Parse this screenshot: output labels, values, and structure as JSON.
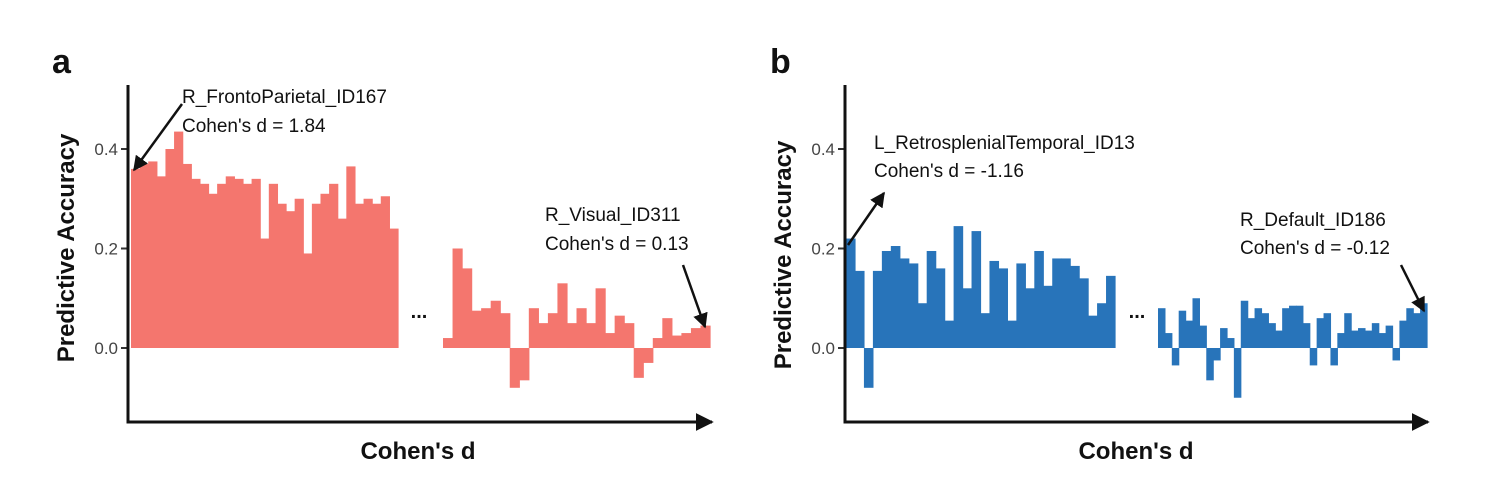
{
  "chart_data": [
    {
      "type": "bar",
      "panel_label": "a",
      "ylabel": "Predictive Accuracy",
      "xlabel": "Cohen's d",
      "ylim": [
        -0.15,
        0.53
      ],
      "yticks": [
        "0.0",
        "0.2",
        "0.4"
      ],
      "ytick_values": [
        0.0,
        0.2,
        0.4
      ],
      "grid": false,
      "bar_color": "#F4766E",
      "gap_marker": "...",
      "series": [
        {
          "group": "top",
          "values": [
            0.36,
            0.37,
            0.375,
            0.345,
            0.4,
            0.435,
            0.37,
            0.34,
            0.33,
            0.31,
            0.33,
            0.345,
            0.34,
            0.33,
            0.34,
            0.22,
            0.33,
            0.29,
            0.275,
            0.3,
            0.19,
            0.29,
            0.31,
            0.33,
            0.26,
            0.365,
            0.29,
            0.3,
            0.29,
            0.305,
            0.24
          ]
        },
        {
          "group": "bottom",
          "values": [
            0.02,
            0.2,
            0.16,
            0.075,
            0.08,
            0.095,
            0.07,
            -0.08,
            -0.065,
            0.08,
            0.05,
            0.07,
            0.13,
            0.05,
            0.08,
            0.05,
            0.12,
            0.03,
            0.065,
            0.05,
            -0.06,
            -0.03,
            0.02,
            0.06,
            0.025,
            0.03,
            0.04,
            0.045
          ]
        }
      ],
      "annotations": [
        {
          "text": [
            "R_FrontoParietal_ID167",
            "Cohen's d = 1.84"
          ],
          "target": {
            "group": "top",
            "index": 0
          }
        },
        {
          "text": [
            "R_Visual_ID311",
            "Cohen's d = 0.13"
          ],
          "target": {
            "group": "bottom",
            "index": 27
          }
        }
      ]
    },
    {
      "type": "bar",
      "panel_label": "b",
      "ylabel": "Predictive Accuracy",
      "xlabel": "Cohen's d",
      "ylim": [
        -0.15,
        0.53
      ],
      "yticks": [
        "0.0",
        "0.2",
        "0.4"
      ],
      "ytick_values": [
        0.0,
        0.2,
        0.4
      ],
      "grid": false,
      "bar_color": "#2874BA",
      "gap_marker": "...",
      "series": [
        {
          "group": "top",
          "values": [
            0.22,
            0.155,
            -0.08,
            0.155,
            0.195,
            0.205,
            0.18,
            0.17,
            0.09,
            0.195,
            0.16,
            0.055,
            0.245,
            0.12,
            0.235,
            0.07,
            0.175,
            0.16,
            0.055,
            0.17,
            0.12,
            0.195,
            0.125,
            0.18,
            0.18,
            0.165,
            0.14,
            0.065,
            0.09,
            0.145
          ]
        },
        {
          "group": "bottom",
          "values": [
            0.08,
            0.03,
            -0.035,
            0.075,
            0.055,
            0.1,
            0.045,
            -0.065,
            -0.025,
            0.04,
            0.02,
            -0.1,
            0.095,
            0.06,
            0.08,
            0.07,
            0.05,
            0.035,
            0.08,
            0.085,
            0.085,
            0.05,
            -0.035,
            0.06,
            0.07,
            -0.035,
            0.03,
            0.07,
            0.035,
            0.04,
            0.035,
            0.05,
            0.03,
            0.045,
            -0.025,
            0.055,
            0.08,
            0.07,
            0.09
          ]
        }
      ],
      "annotations": [
        {
          "text": [
            "L_RetrosplenialTemporal_ID13",
            "Cohen's d = -1.16"
          ],
          "target": {
            "group": "top",
            "index": 0
          }
        },
        {
          "text": [
            "R_Default_ID186",
            "Cohen's d = -0.12"
          ],
          "target": {
            "group": "bottom",
            "index": 38
          }
        }
      ]
    }
  ]
}
